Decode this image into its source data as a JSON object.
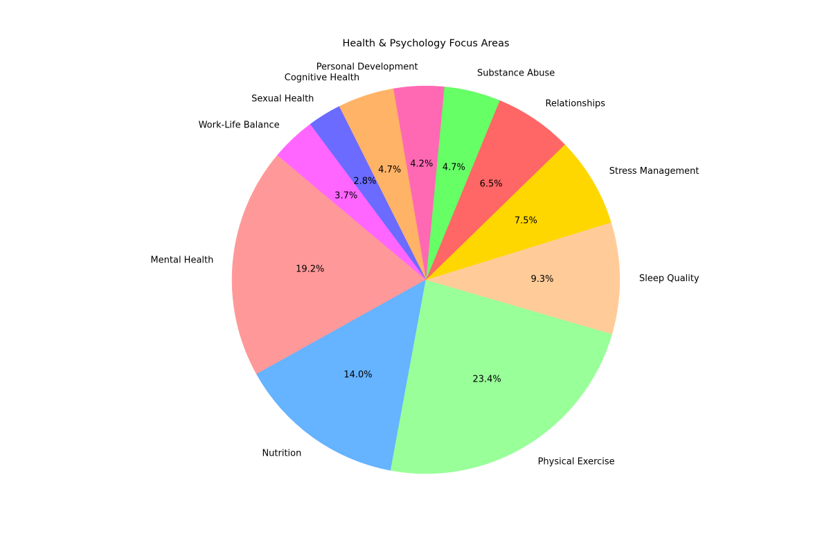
{
  "chart_data": {
    "type": "pie",
    "title": "Health & Psychology Focus Areas",
    "start_angle_deg": 140,
    "direction": "counterclockwise",
    "slices": [
      {
        "label": "Mental Health",
        "value": 19.2,
        "pct_label": "19.2%",
        "color": "#FF9999"
      },
      {
        "label": "Nutrition",
        "value": 14.0,
        "pct_label": "14.0%",
        "color": "#66B3FF"
      },
      {
        "label": "Physical Exercise",
        "value": 23.4,
        "pct_label": "23.4%",
        "color": "#99FF99"
      },
      {
        "label": "Sleep Quality",
        "value": 9.3,
        "pct_label": "9.3%",
        "color": "#FFCC99"
      },
      {
        "label": "Stress Management",
        "value": 7.5,
        "pct_label": "7.5%",
        "color": "#FFD700"
      },
      {
        "label": "Relationships",
        "value": 6.5,
        "pct_label": "6.5%",
        "color": "#FF6666"
      },
      {
        "label": "Substance Abuse",
        "value": 4.7,
        "pct_label": "4.7%",
        "color": "#66FF66"
      },
      {
        "label": "Personal Development",
        "value": 4.2,
        "pct_label": "4.2%",
        "color": "#FF69B4"
      },
      {
        "label": "Cognitive Health",
        "value": 4.7,
        "pct_label": "4.7%",
        "color": "#FFB366"
      },
      {
        "label": "Sexual Health",
        "value": 2.8,
        "pct_label": "2.8%",
        "color": "#6B6BFF"
      },
      {
        "label": "Work-Life Balance",
        "value": 3.7,
        "pct_label": "3.7%",
        "color": "#FF66FF"
      }
    ]
  }
}
